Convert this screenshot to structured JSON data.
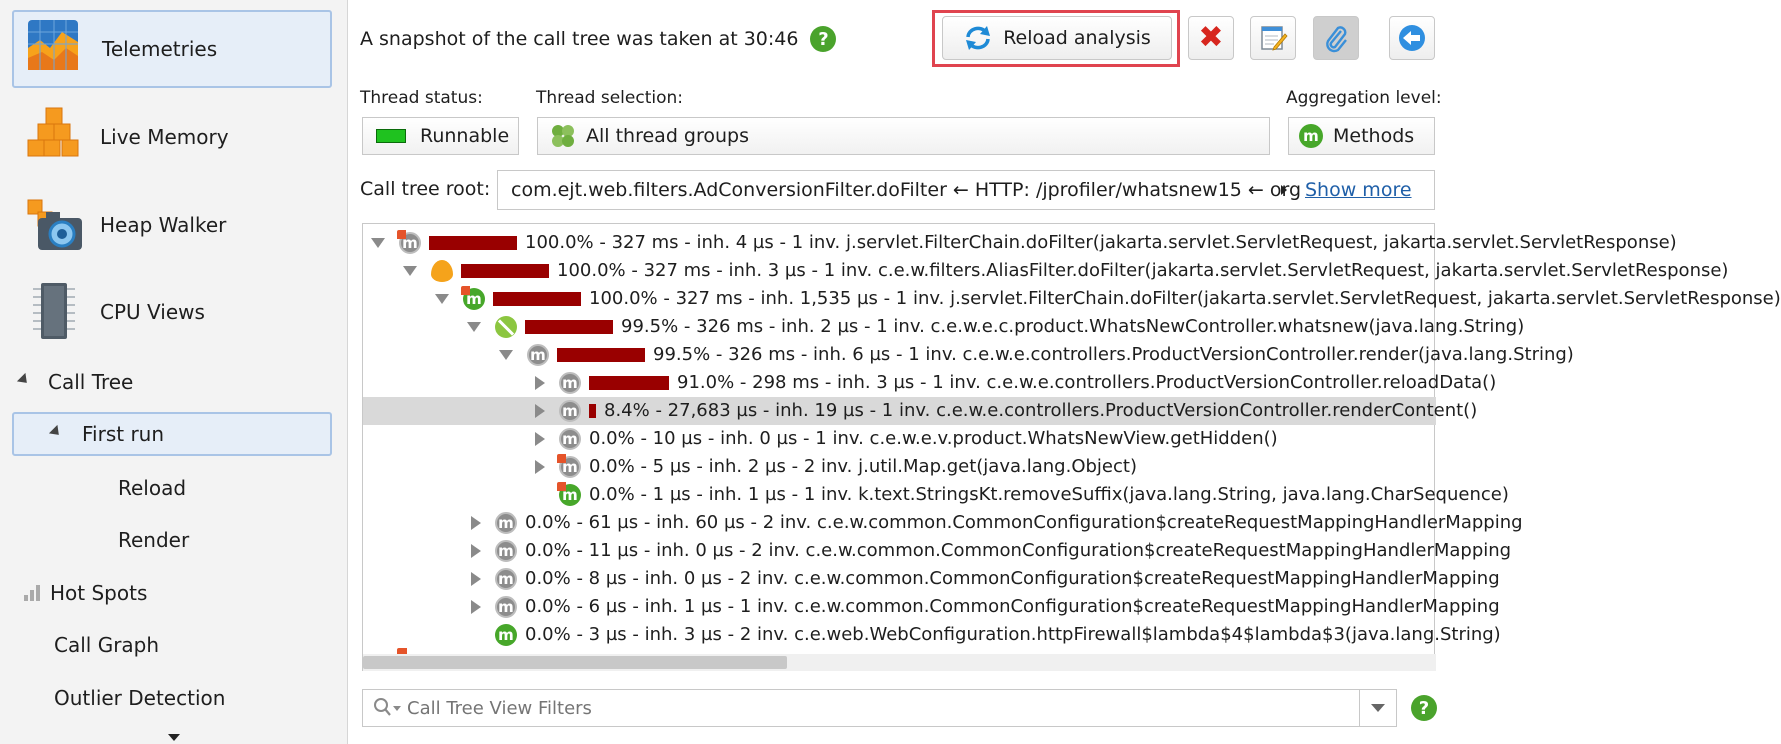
{
  "sidebar": {
    "telemetries": "Telemetries",
    "live_memory": "Live Memory",
    "heap_walker": "Heap Walker",
    "cpu_views": "CPU Views",
    "call_tree": "Call Tree",
    "first_run": "First run",
    "reload": "Reload",
    "render": "Render",
    "hot_spots": "Hot Spots",
    "call_graph": "Call Graph",
    "outlier_detection": "Outlier Detection"
  },
  "header": {
    "snapshot_text": "A snapshot of the call tree was taken at 30:46",
    "help": "?",
    "reload_label": "Reload analysis"
  },
  "controls": {
    "thread_status_label": "Thread status:",
    "thread_status_value": "Runnable",
    "thread_selection_label": "Thread selection:",
    "thread_selection_value": "All thread groups",
    "aggregation_label": "Aggregation level:",
    "aggregation_value": "Methods",
    "aggregation_icon": "m",
    "root_label": "Call tree root:",
    "root_value": "com.ejt.web.filters.AdConversionFilter.doFilter ← HTTP: /jprofiler/whatsnew15 ← org",
    "show_more": "Show more"
  },
  "tree": {
    "rows": [
      {
        "text": "100.0% - 327 ms - inh. 4 µs - 1 inv. j.servlet.FilterChain.doFilter(jakarta.servlet.ServletRequest, jakarta.servlet.ServletResponse)",
        "percent": 100.0
      },
      {
        "text": "100.0% - 327 ms - inh. 3 µs - 1 inv. c.e.w.filters.AliasFilter.doFilter(jakarta.servlet.ServletRequest, jakarta.servlet.ServletResponse)",
        "percent": 100.0
      },
      {
        "text": "100.0% - 327 ms - inh. 1,535 µs - 1 inv. j.servlet.FilterChain.doFilter(jakarta.servlet.ServletRequest, jakarta.servlet.ServletResponse)",
        "percent": 100.0
      },
      {
        "text": "99.5% - 326 ms - inh. 2 µs - 1 inv. c.e.w.e.c.product.WhatsNewController.whatsnew(java.lang.String)",
        "percent": 99.5
      },
      {
        "text": "99.5% - 326 ms - inh. 6 µs - 1 inv. c.e.w.e.controllers.ProductVersionController.render(java.lang.String)",
        "percent": 99.5
      },
      {
        "text": "91.0% - 298 ms - inh. 3 µs - 1 inv. c.e.w.e.controllers.ProductVersionController.reloadData()",
        "percent": 91.0
      },
      {
        "text": "8.4% - 27,683 µs - inh. 19 µs - 1 inv. c.e.w.e.controllers.ProductVersionController.renderContent()",
        "percent": 8.4
      },
      {
        "text": "0.0% - 10 µs - inh. 0 µs - 1 inv. c.e.w.e.v.product.WhatsNewView.getHidden()",
        "percent": 0.0
      },
      {
        "text": "0.0% - 5 µs - inh. 2 µs - 2 inv. j.util.Map.get(java.lang.Object)",
        "percent": 0.0
      },
      {
        "text": "0.0% - 1 µs - inh. 1 µs - 1 inv. k.text.StringsKt.removeSuffix(java.lang.String, java.lang.CharSequence)",
        "percent": 0.0
      },
      {
        "text": "0.0% - 61 µs - inh. 60 µs - 2 inv. c.e.w.common.CommonConfiguration$createRequestMappingHandlerMapping",
        "percent": 0.0
      },
      {
        "text": "0.0% - 11 µs - inh. 0 µs - 2 inv. c.e.w.common.CommonConfiguration$createRequestMappingHandlerMapping",
        "percent": 0.0
      },
      {
        "text": "0.0% - 8 µs - inh. 0 µs - 2 inv. c.e.w.common.CommonConfiguration$createRequestMappingHandlerMapping",
        "percent": 0.0
      },
      {
        "text": "0.0% - 6 µs - inh. 1 µs - 1 inv. c.e.w.common.CommonConfiguration$createRequestMappingHandlerMapping",
        "percent": 0.0
      },
      {
        "text": "0.0% - 3 µs - inh. 3 µs - 2 inv. c.e.web.WebConfiguration.httpFirewall$lambda$4$lambda$3(java.lang.String)",
        "percent": 0.0
      }
    ]
  },
  "filter": {
    "placeholder": "Call Tree View Filters"
  },
  "colors": {
    "bar": "#990000",
    "accent_green": "#47a72a",
    "highlight": "#e0444f"
  }
}
